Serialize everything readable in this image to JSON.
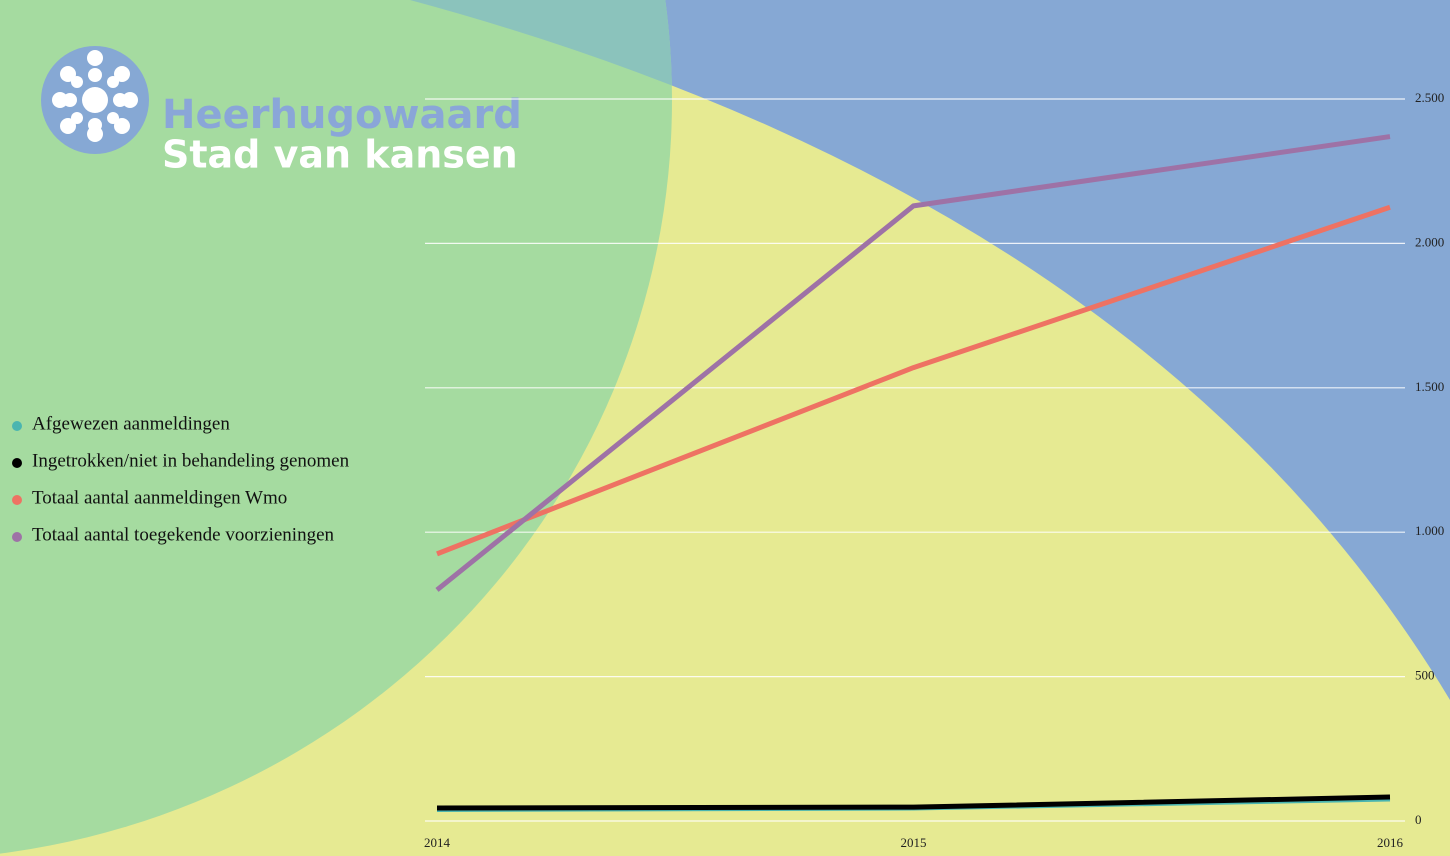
{
  "logo": {
    "name": "Heerhugowaard",
    "tagline": "Stad van kansen"
  },
  "chart_data": {
    "type": "line",
    "x": [
      2014,
      2015,
      2016
    ],
    "xlim": [
      2014,
      2016
    ],
    "xticks": [
      2014,
      2015,
      2016
    ],
    "ylim": [
      0,
      2500
    ],
    "yticks": [
      0,
      500,
      {
        "value": 1000,
        "label": "1.000"
      },
      {
        "value": 1500,
        "label": "1.500"
      },
      {
        "value": 2000,
        "label": "2.000"
      },
      {
        "value": 2500,
        "label": "2.500"
      }
    ],
    "grid": true,
    "series": [
      {
        "name": "Afgewezen aanmeldingen",
        "color": "#4ab5b0",
        "values": [
          40,
          45,
          76
        ]
      },
      {
        "name": "Ingetrokken/niet in behandeling genomen",
        "color": "#000000",
        "values": [
          45,
          48,
          83
        ]
      },
      {
        "name": "Totaal aantal aanmeldingen Wmo",
        "color": "#ee7263",
        "values": [
          925,
          1570,
          2125
        ]
      },
      {
        "name": "Totaal aantal toegekende voorzieningen",
        "color": "#9e72a6",
        "values": [
          800,
          2130,
          2370
        ]
      }
    ]
  }
}
